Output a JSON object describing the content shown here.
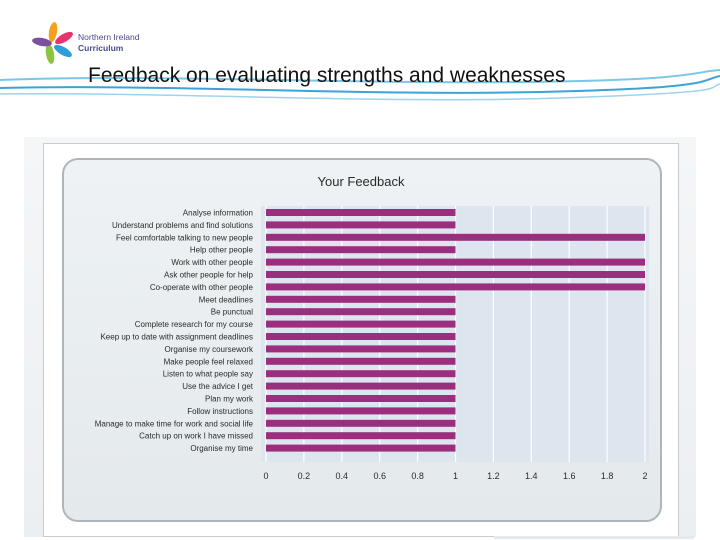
{
  "header": {
    "logo_line1": "Northern Ireland",
    "logo_line2": "Curriculum",
    "title": "Feedback on evaluating strengths and weaknesses"
  },
  "colors": {
    "bar": "#9b2f7d",
    "grid": "#ffffff",
    "text": "#2b2b2b"
  },
  "chart_data": {
    "type": "bar",
    "orientation": "horizontal",
    "title": "Your Feedback",
    "categories": [
      "Analyse information",
      "Understand problems and find solutions",
      "Feel comfortable talking to new people",
      "Help other people",
      "Work with other people",
      "Ask other people for help",
      "Co-operate with other people",
      "Meet deadlines",
      "Be punctual",
      "Complete research for my course",
      "Keep up to date with assignment deadlines",
      "Organise my coursework",
      "Make people feel relaxed",
      "Listen to what people say",
      "Use the advice I get",
      "Plan my work",
      "Follow instructions",
      "Manage to make time for work and social life",
      "Catch up on work I have missed",
      "Organise my time"
    ],
    "values": [
      1,
      1,
      2,
      1,
      2,
      2,
      2,
      1,
      1,
      1,
      1,
      1,
      1,
      1,
      1,
      1,
      1,
      1,
      1,
      1
    ],
    "xlim": [
      0,
      2
    ],
    "xticks": [
      "0",
      "0.2",
      "0.4",
      "0.6",
      "0.8",
      "1",
      "1.2",
      "1.4",
      "1.6",
      "1.8",
      "2"
    ],
    "grid": true,
    "legend": "none"
  }
}
